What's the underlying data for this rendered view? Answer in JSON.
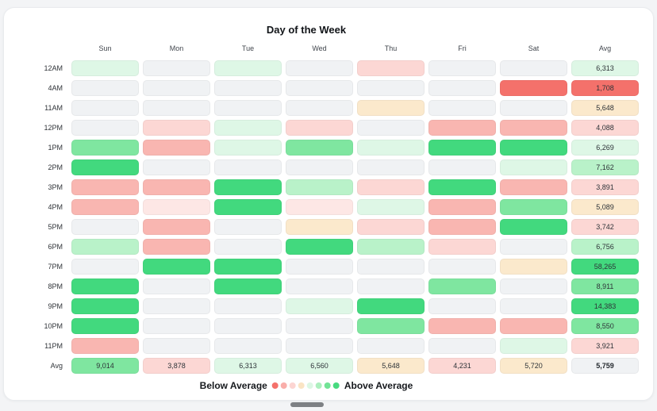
{
  "page": {
    "background": "#f3f4f6"
  },
  "chart_data": {
    "type": "heatmap",
    "title": "Day of the Week",
    "columns": [
      "Sun",
      "Mon",
      "Tue",
      "Wed",
      "Thu",
      "Fri",
      "Sat",
      "Avg"
    ],
    "palette": {
      "red": "#f4716b",
      "pink": "#f9b6b1",
      "lightPink": "#fcd7d4",
      "palePink": "#fde7e5",
      "cream": "#fbe9cc",
      "paleGreen": "#def7e6",
      "lightGreen": "#b9f2c9",
      "medGreen": "#7fe6a0",
      "green": "#42d97e",
      "neutral": "#f0f2f4"
    },
    "rows": [
      {
        "label": "12AM",
        "cells": [
          "paleGreen",
          "neutral",
          "paleGreen",
          "neutral",
          "lightPink",
          "neutral",
          "neutral"
        ],
        "avg": {
          "value": "6,313",
          "color": "paleGreen"
        }
      },
      {
        "label": "4AM",
        "cells": [
          "neutral",
          "neutral",
          "neutral",
          "neutral",
          "neutral",
          "neutral",
          "red"
        ],
        "avg": {
          "value": "1,708",
          "color": "red"
        }
      },
      {
        "label": "11AM",
        "cells": [
          "neutral",
          "neutral",
          "neutral",
          "neutral",
          "cream",
          "neutral",
          "neutral"
        ],
        "avg": {
          "value": "5,648",
          "color": "cream"
        }
      },
      {
        "label": "12PM",
        "cells": [
          "neutral",
          "lightPink",
          "paleGreen",
          "lightPink",
          "neutral",
          "pink",
          "pink"
        ],
        "avg": {
          "value": "4,088",
          "color": "lightPink"
        }
      },
      {
        "label": "1PM",
        "cells": [
          "medGreen",
          "pink",
          "paleGreen",
          "medGreen",
          "paleGreen",
          "green",
          "green"
        ],
        "avg": {
          "value": "6,269",
          "color": "paleGreen"
        }
      },
      {
        "label": "2PM",
        "cells": [
          "green",
          "neutral",
          "neutral",
          "neutral",
          "neutral",
          "neutral",
          "paleGreen"
        ],
        "avg": {
          "value": "7,162",
          "color": "lightGreen"
        }
      },
      {
        "label": "3PM",
        "cells": [
          "pink",
          "pink",
          "green",
          "lightGreen",
          "lightPink",
          "green",
          "pink"
        ],
        "avg": {
          "value": "3,891",
          "color": "lightPink"
        }
      },
      {
        "label": "4PM",
        "cells": [
          "pink",
          "palePink",
          "green",
          "palePink",
          "paleGreen",
          "pink",
          "medGreen"
        ],
        "avg": {
          "value": "5,089",
          "color": "cream"
        }
      },
      {
        "label": "5PM",
        "cells": [
          "neutral",
          "pink",
          "neutral",
          "cream",
          "lightPink",
          "pink",
          "green"
        ],
        "avg": {
          "value": "3,742",
          "color": "lightPink"
        }
      },
      {
        "label": "6PM",
        "cells": [
          "lightGreen",
          "pink",
          "neutral",
          "green",
          "lightGreen",
          "lightPink",
          "neutral"
        ],
        "avg": {
          "value": "6,756",
          "color": "lightGreen"
        }
      },
      {
        "label": "7PM",
        "cells": [
          "neutral",
          "green",
          "green",
          "neutral",
          "neutral",
          "neutral",
          "cream"
        ],
        "avg": {
          "value": "58,265",
          "color": "green"
        }
      },
      {
        "label": "8PM",
        "cells": [
          "green",
          "neutral",
          "green",
          "neutral",
          "neutral",
          "medGreen",
          "neutral"
        ],
        "avg": {
          "value": "8,911",
          "color": "medGreen"
        }
      },
      {
        "label": "9PM",
        "cells": [
          "green",
          "neutral",
          "neutral",
          "paleGreen",
          "green",
          "neutral",
          "neutral"
        ],
        "avg": {
          "value": "14,383",
          "color": "green"
        }
      },
      {
        "label": "10PM",
        "cells": [
          "green",
          "neutral",
          "neutral",
          "neutral",
          "medGreen",
          "pink",
          "pink"
        ],
        "avg": {
          "value": "8,550",
          "color": "medGreen"
        }
      },
      {
        "label": "11PM",
        "cells": [
          "pink",
          "neutral",
          "neutral",
          "neutral",
          "neutral",
          "neutral",
          "paleGreen"
        ],
        "avg": {
          "value": "3,921",
          "color": "lightPink"
        }
      }
    ],
    "avg_row": {
      "label": "Avg",
      "cells": [
        {
          "value": "9,014",
          "color": "medGreen"
        },
        {
          "value": "3,878",
          "color": "lightPink"
        },
        {
          "value": "6,313",
          "color": "paleGreen"
        },
        {
          "value": "6,560",
          "color": "paleGreen"
        },
        {
          "value": "5,648",
          "color": "cream"
        },
        {
          "value": "4,231",
          "color": "lightPink"
        },
        {
          "value": "5,720",
          "color": "cream"
        }
      ],
      "avg": {
        "value": "5,759",
        "color": "neutral",
        "bold": true
      }
    },
    "legend": {
      "below_label": "Below Average",
      "above_label": "Above Average",
      "scale": [
        "#f4716b",
        "#f9aeaa",
        "#fcd5d2",
        "#fae4c4",
        "#dcf7e4",
        "#adefbe",
        "#72e396",
        "#47da7f"
      ]
    }
  }
}
